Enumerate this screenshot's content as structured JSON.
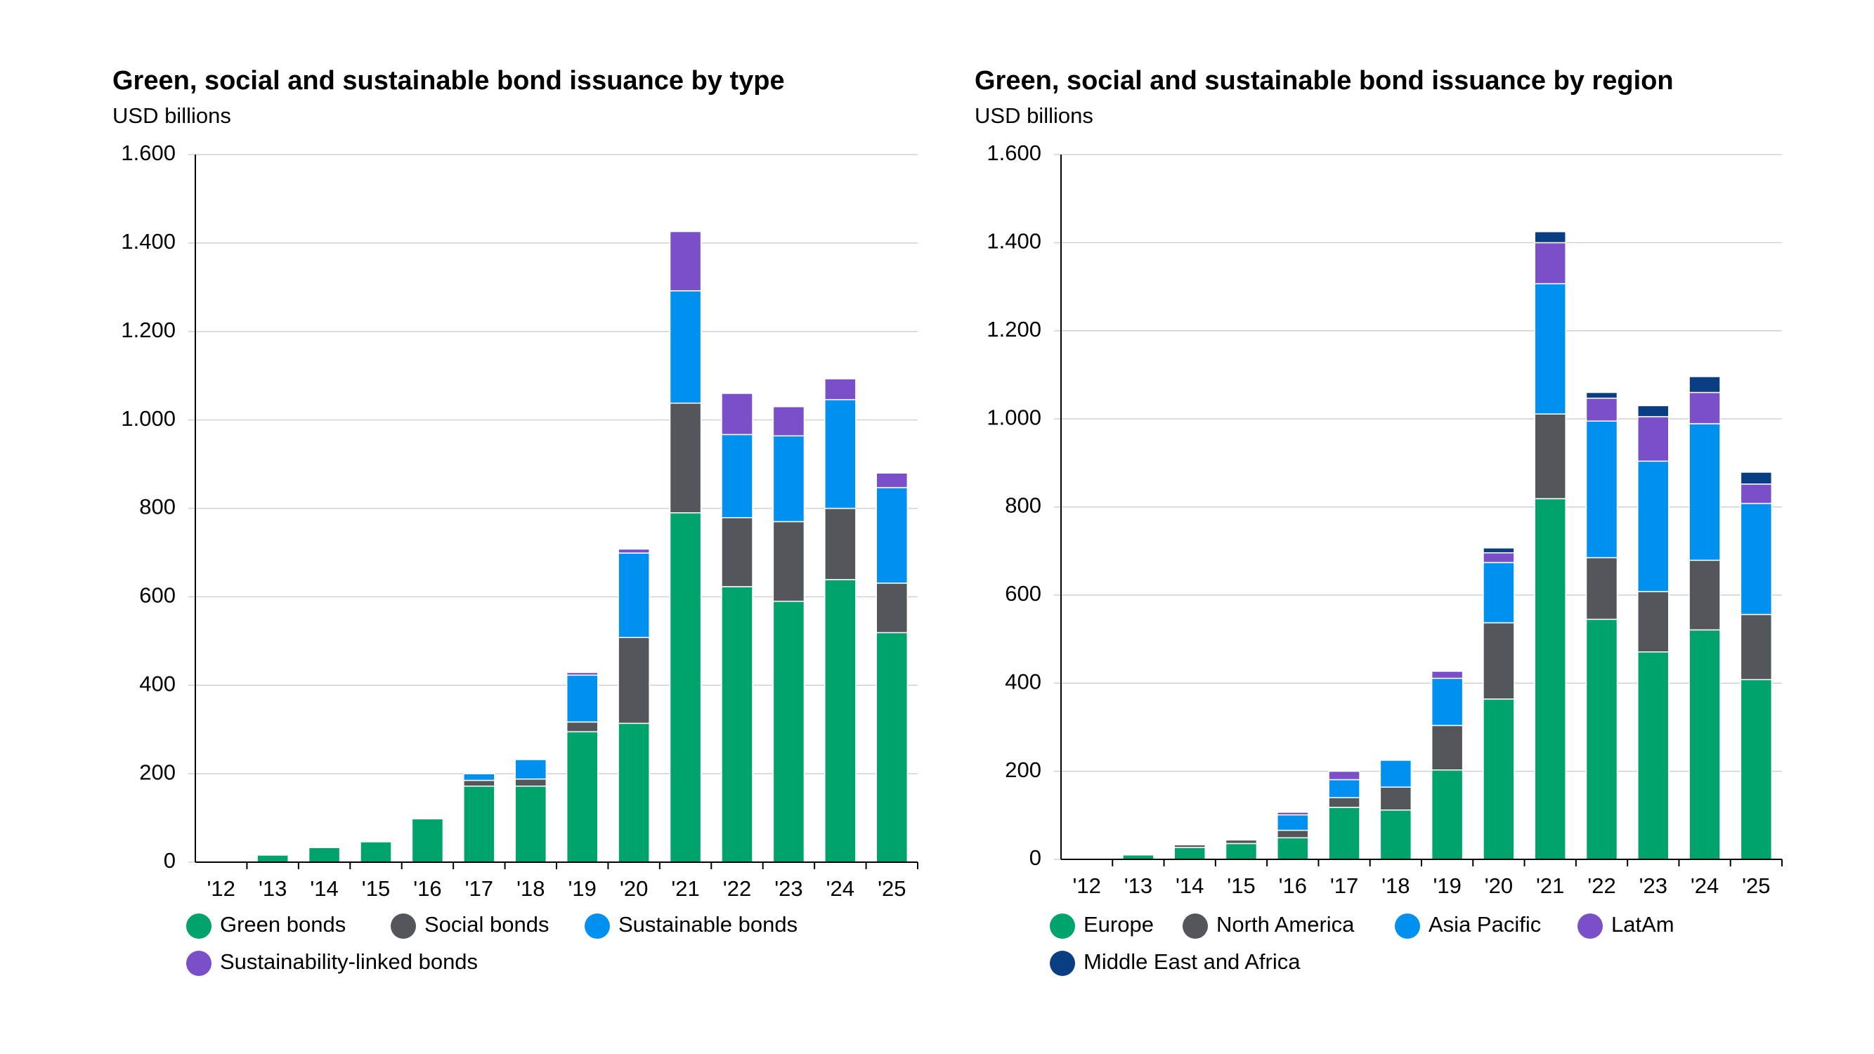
{
  "chart_data": [
    {
      "type": "bar",
      "stacked": true,
      "title": "Green, social and sustainable bond issuance by type",
      "subtitle": "USD billions",
      "categories": [
        "'12",
        "'13",
        "'14",
        "'15",
        "'16",
        "'17",
        "'18",
        "'19",
        "'20",
        "'21",
        "'22",
        "'23",
        "'24",
        "'25"
      ],
      "series": [
        {
          "name": "Green bonds",
          "color": "#00a36c",
          "values": [
            0,
            16,
            33,
            46,
            98,
            172,
            172,
            295,
            314,
            790,
            623,
            590,
            639,
            519
          ]
        },
        {
          "name": "Social bonds",
          "color": "#53565a",
          "values": [
            0,
            0,
            0,
            0,
            0,
            13,
            16,
            22,
            194,
            248,
            156,
            180,
            161,
            112
          ]
        },
        {
          "name": "Sustainable bonds",
          "color": "#0091f0",
          "values": [
            0,
            0,
            0,
            0,
            0,
            15,
            44,
            106,
            191,
            254,
            188,
            194,
            246,
            216
          ]
        },
        {
          "name": "Sustainability-linked bonds",
          "color": "#7a4fc8",
          "values": [
            0,
            0,
            0,
            0,
            0,
            0,
            0,
            6,
            9,
            134,
            93,
            66,
            47,
            33
          ]
        }
      ],
      "ylim": [
        0,
        1600
      ],
      "yticks": [
        0,
        200,
        400,
        600,
        800,
        {
          "value": 1000,
          "label": "1.000"
        },
        {
          "value": 1200,
          "label": "1.200"
        },
        {
          "value": 1400,
          "label": "1.400"
        },
        {
          "value": 1600,
          "label": "1.600"
        }
      ],
      "grid": true,
      "legend": "bottom"
    },
    {
      "type": "bar",
      "stacked": true,
      "title": "Green, social and sustainable bond issuance by region",
      "subtitle": "USD billions",
      "categories": [
        "'12",
        "'13",
        "'14",
        "'15",
        "'16",
        "'17",
        "'18",
        "'19",
        "'20",
        "'21",
        "'22",
        "'23",
        "'24",
        "'25"
      ],
      "series": [
        {
          "name": "Europe",
          "color": "#00a36c",
          "values": [
            0,
            10,
            27,
            36,
            49,
            118,
            112,
            203,
            364,
            819,
            545,
            471,
            521,
            408
          ]
        },
        {
          "name": "North America",
          "color": "#53565a",
          "values": [
            0,
            0,
            6,
            8,
            17,
            22,
            52,
            101,
            173,
            192,
            140,
            137,
            158,
            148
          ]
        },
        {
          "name": "Asia Pacific",
          "color": "#0091f0",
          "values": [
            0,
            0,
            0,
            0,
            35,
            41,
            61,
            107,
            137,
            296,
            310,
            296,
            310,
            252
          ]
        },
        {
          "name": "LatAm",
          "color": "#7a4fc8",
          "values": [
            0,
            0,
            0,
            0,
            6,
            19,
            0,
            16,
            22,
            93,
            52,
            101,
            71,
            44
          ]
        },
        {
          "name": "Middle East and Africa",
          "color": "#0a3d82",
          "values": [
            0,
            0,
            0,
            0,
            0,
            0,
            0,
            0,
            11,
            25,
            13,
            25,
            36,
            27
          ]
        }
      ],
      "ylim": [
        0,
        1600
      ],
      "yticks": [
        0,
        200,
        400,
        600,
        800,
        {
          "value": 1000,
          "label": "1.000"
        },
        {
          "value": 1200,
          "label": "1.200"
        },
        {
          "value": 1400,
          "label": "1.400"
        },
        {
          "value": 1600,
          "label": "1.600"
        }
      ],
      "grid": true,
      "legend": "bottom"
    }
  ]
}
